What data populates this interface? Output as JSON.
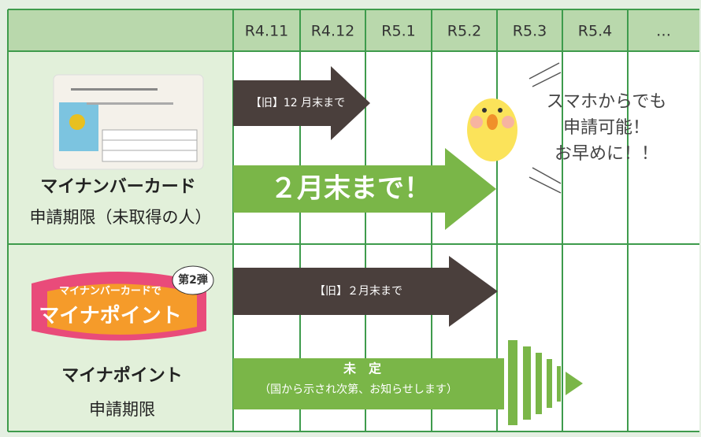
{
  "header": {
    "columns": [
      "R4.11",
      "R4.12",
      "R5.1",
      "R5.2",
      "R5.3",
      "R5.4",
      "…"
    ]
  },
  "rows": [
    {
      "title": "マイナンバーカード",
      "subtitle": "申請期限（未取得の人）",
      "old_arrow": "【旧】12 月末まで",
      "new_arrow": "２月末まで！"
    },
    {
      "title": "マイナポイント",
      "subtitle": "申請期限",
      "old_arrow": "【旧】２月末まで",
      "new_arrow": "未　定",
      "note": "（国から示され次第、お知らせします）"
    }
  ],
  "callout": [
    "スマホからでも",
    "申請可能！",
    "お早めに！！"
  ],
  "logo": {
    "small": "マイナンバーカードで",
    "big": "マイナポイント",
    "badge": "第2弾"
  }
}
